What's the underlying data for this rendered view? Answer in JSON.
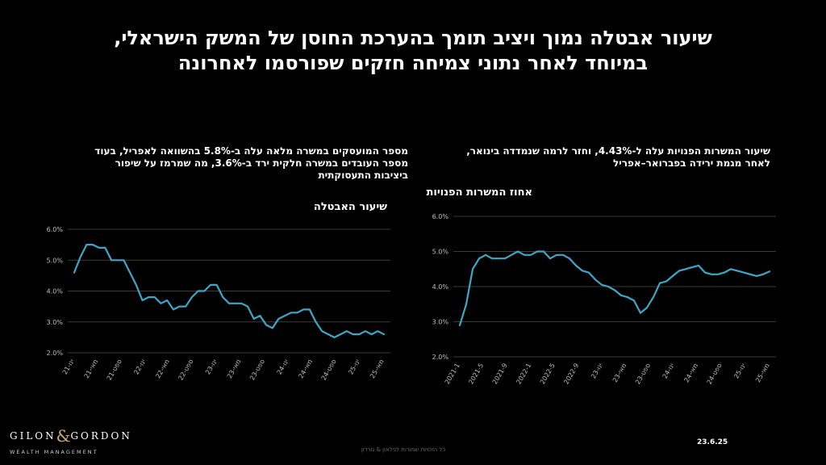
{
  "header": {
    "title_line1": "שיעור אבטלה נמוך ויציב תומך בהערכת החוסן של המשק הישראלי,",
    "title_line2": "במיוחד לאחר נתוני צמיחה חזקים שפורסמו לאחרונה"
  },
  "left_panel": {
    "subtitle_line1": "מספר המועסקים במשרה מלאה עלה ב-5.8% בהשוואה לאפריל, בעוד",
    "subtitle_line2": "מספר העובדים במשרה חלקית ירד ב-3.6%, מה שמרמז על שיפור",
    "subtitle_line3": "ביציבות התעסוקתית"
  },
  "right_panel": {
    "subtitle_line1": "שיעור המשרות הפנויות עלה ל-4.43%, וחזר לרמה שנמדדה בינואר,",
    "subtitle_line2": "לאחר מגמת ירידה בפברואר–אפריל"
  },
  "chart_data": [
    {
      "type": "line",
      "ylabel": "שיעור האבטלה",
      "ylim": [
        2.0,
        6.0
      ],
      "y_ticks": [
        "2.0%",
        "3.0%",
        "4.0%",
        "5.0%",
        "6.0%"
      ],
      "x_ticks": [
        "ינו-21",
        "מאי-21",
        "ספט-21",
        "ינו-22",
        "מאי-22",
        "ספט-22",
        "ינו-23",
        "מאי-23",
        "ספט-23",
        "ינו-24",
        "מאי-24",
        "ספט-24",
        "ינו-25",
        "מאי-25"
      ],
      "grid": true,
      "color": "#3aa9c8",
      "values": [
        4.6,
        5.1,
        5.5,
        5.5,
        5.4,
        5.4,
        5.0,
        5.0,
        5.0,
        4.6,
        4.2,
        3.7,
        3.8,
        3.8,
        3.6,
        3.7,
        3.4,
        3.5,
        3.5,
        3.8,
        4.0,
        4.0,
        4.2,
        4.2,
        3.8,
        3.6,
        3.6,
        3.6,
        3.5,
        3.1,
        3.2,
        2.9,
        2.8,
        3.1,
        3.2,
        3.3,
        3.3,
        3.4,
        3.4,
        3.0,
        2.7,
        2.6,
        2.5,
        2.6,
        2.7,
        2.6,
        2.6,
        2.7,
        2.6,
        2.7,
        2.6
      ]
    },
    {
      "type": "line",
      "ylabel": "אחוז המשרות הפנויות",
      "ylim": [
        2.0,
        6.0
      ],
      "y_ticks": [
        "2.0%",
        "3.0%",
        "4.0%",
        "5.0%",
        "6.0%"
      ],
      "x_ticks": [
        "2021-1",
        "2021-5",
        "2021-9",
        "2022-1",
        "2022-5",
        "2022-9",
        "ינו-23",
        "מאי-23",
        "ספט-23",
        "ינו-24",
        "מאי-24",
        "ספט-24",
        "ינו-25",
        "מאי-25"
      ],
      "grid": true,
      "color": "#3aa9c8",
      "values": [
        2.9,
        3.5,
        4.5,
        4.8,
        4.9,
        4.8,
        4.8,
        4.8,
        4.9,
        5.0,
        4.9,
        4.9,
        5.0,
        5.0,
        4.8,
        4.9,
        4.9,
        4.8,
        4.6,
        4.45,
        4.4,
        4.2,
        4.05,
        4.0,
        3.9,
        3.75,
        3.7,
        3.6,
        3.25,
        3.4,
        3.7,
        4.1,
        4.15,
        4.3,
        4.45,
        4.5,
        4.55,
        4.6,
        4.4,
        4.35,
        4.35,
        4.4,
        4.5,
        4.45,
        4.4,
        4.35,
        4.3,
        4.35,
        4.43
      ]
    }
  ],
  "logo": {
    "gilon": "GILON",
    "amp": "&",
    "gordon": "GORDON",
    "tagline": "WEALTH MANAGEMENT"
  },
  "footer": {
    "rights": "כל הזכויות שמורות לגילאון & גורדון",
    "date": "23.6.25"
  }
}
